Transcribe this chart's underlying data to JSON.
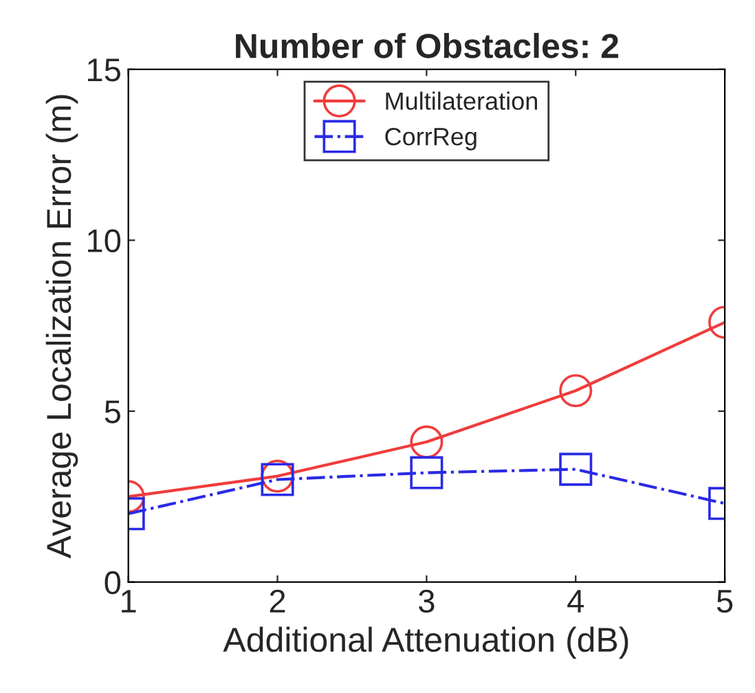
{
  "chart_data": {
    "type": "line",
    "title": "Number of Obstacles: 2",
    "xlabel": "Additional Attenuation (dB)",
    "ylabel": "Average Localization Error (m)",
    "x": [
      1,
      2,
      3,
      4,
      5
    ],
    "series": [
      {
        "name": "Multilateration",
        "color": "#f03c3c",
        "values": [
          2.5,
          3.1,
          4.1,
          5.6,
          7.6
        ],
        "marker": "circle",
        "line_style": "solid"
      },
      {
        "name": "CorrReg",
        "color": "#2a2ae6",
        "values": [
          2.0,
          3.0,
          3.2,
          3.3,
          2.3
        ],
        "marker": "square",
        "line_style": "dashdot"
      }
    ],
    "xlim": [
      1,
      5
    ],
    "xticks": [
      1,
      2,
      3,
      4,
      5
    ],
    "ylim": [
      0,
      15
    ],
    "yticks": [
      0,
      5,
      10,
      15
    ],
    "grid": false,
    "legend": "top"
  }
}
